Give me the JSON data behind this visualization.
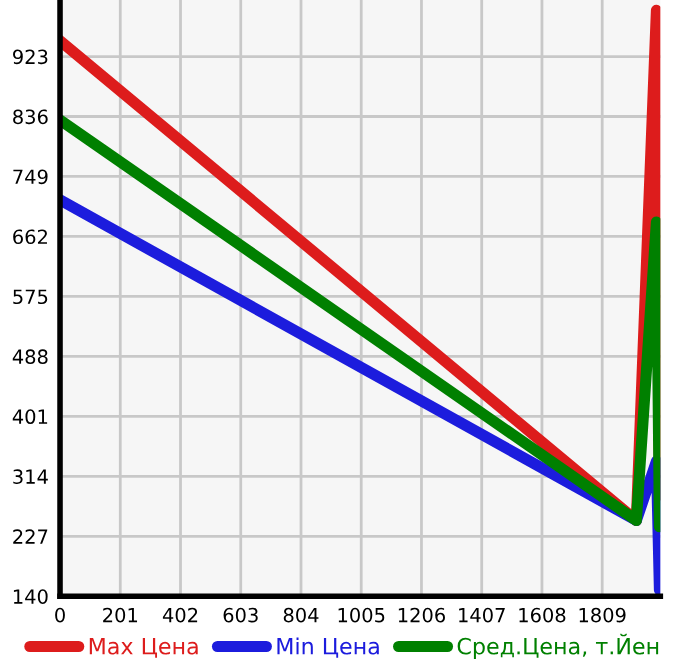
{
  "chart_data": {
    "type": "line",
    "x": [
      0,
      1923,
      1990,
      2000
    ],
    "series": [
      {
        "name": "Max Цена",
        "color": "#dd1c1c",
        "values": [
          946,
          250,
          990,
          287
        ]
      },
      {
        "name": "Min Цена",
        "color": "#1c1cdd",
        "values": [
          715,
          250,
          336,
          149
        ]
      },
      {
        "name": "Сред.Цена, т.Йен",
        "color": "#008000",
        "values": [
          831,
          250,
          683,
          241
        ]
      }
    ],
    "xlim": [
      0,
      2003
    ],
    "xticks": [
      0,
      201,
      402,
      603,
      804,
      1005,
      1206,
      1407,
      1608,
      1809
    ],
    "ylim": [
      140,
      1005
    ],
    "yticks": [
      140,
      227,
      314,
      401,
      488,
      575,
      662,
      749,
      836,
      923
    ],
    "grid": true,
    "legend": "bottom",
    "marker": "none",
    "line_style": "solid"
  }
}
